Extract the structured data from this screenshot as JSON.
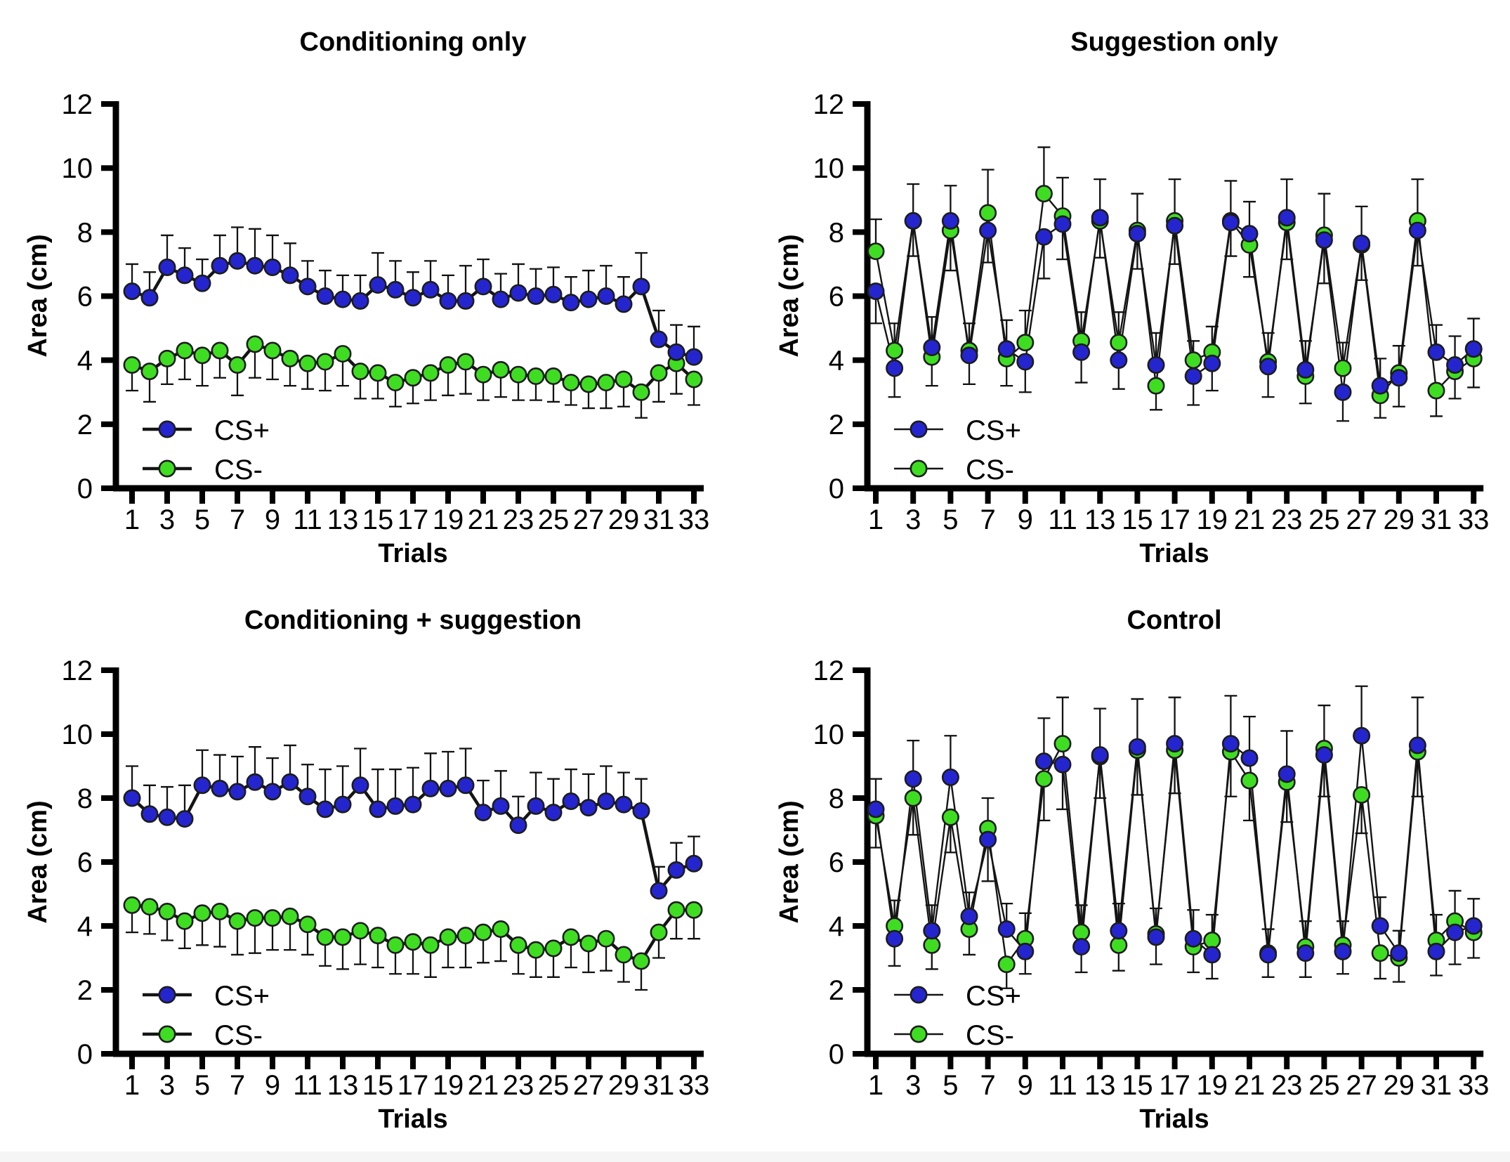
{
  "page": {
    "background": "#ffffff",
    "footer_strip_color": "#f5f5f5"
  },
  "colors": {
    "cs_plus": "#2525d0",
    "cs_minus": "#3fdd22",
    "line": "#141414",
    "axis": "#000000",
    "error_bar": "#111111"
  },
  "legend": {
    "cs_plus_label": "CS+",
    "cs_minus_label": "CS-"
  },
  "axes": {
    "ylabel": "Area (cm)",
    "xlabel": "Trials",
    "ylim": [
      0,
      12
    ],
    "yticks": [
      0,
      2,
      4,
      6,
      8,
      10,
      12
    ],
    "xticks": [
      1,
      3,
      5,
      7,
      9,
      11,
      13,
      15,
      17,
      19,
      21,
      23,
      25,
      27,
      29,
      31,
      33
    ],
    "x_range": [
      1,
      33
    ],
    "grid": "off",
    "legend_position": "lower-left-inside"
  },
  "chart_data": [
    {
      "type": "line",
      "title": "Conditioning only",
      "position": "top-left",
      "error_style": "fixed",
      "series": [
        {
          "name": "CS+",
          "color": "cs_plus",
          "values": [
            6.15,
            5.95,
            6.9,
            6.65,
            6.4,
            6.95,
            7.1,
            6.95,
            6.9,
            6.65,
            6.3,
            6.0,
            5.9,
            5.85,
            6.35,
            6.2,
            5.95,
            6.2,
            5.85,
            5.85,
            6.3,
            5.9,
            6.1,
            6.0,
            6.05,
            5.8,
            5.9,
            6.0,
            5.75,
            6.3,
            4.65,
            4.25,
            4.1
          ],
          "err": [
            0.85,
            0.8,
            1.0,
            0.85,
            0.75,
            0.95,
            1.05,
            1.15,
            1.0,
            1.0,
            0.8,
            0.8,
            0.75,
            0.8,
            1.0,
            0.9,
            0.8,
            0.9,
            0.8,
            1.1,
            0.85,
            0.8,
            0.9,
            0.85,
            0.85,
            0.8,
            0.9,
            0.95,
            0.85,
            1.05,
            0.9,
            0.85,
            0.95
          ]
        },
        {
          "name": "CS-",
          "color": "cs_minus",
          "values": [
            3.85,
            3.65,
            4.05,
            4.3,
            4.15,
            4.3,
            3.85,
            4.5,
            4.3,
            4.05,
            3.9,
            3.95,
            4.2,
            3.65,
            3.6,
            3.3,
            3.45,
            3.6,
            3.85,
            3.95,
            3.55,
            3.7,
            3.55,
            3.5,
            3.5,
            3.3,
            3.25,
            3.3,
            3.4,
            3.0,
            3.6,
            3.9,
            3.4
          ],
          "err": [
            0.8,
            0.95,
            0.8,
            0.9,
            0.95,
            0.85,
            0.95,
            1.05,
            0.9,
            0.85,
            0.8,
            0.9,
            1.0,
            0.85,
            0.8,
            0.75,
            0.8,
            0.85,
            0.95,
            1.0,
            0.8,
            0.85,
            0.8,
            0.75,
            0.8,
            0.7,
            0.75,
            0.8,
            0.85,
            0.8,
            0.9,
            0.95,
            0.8
          ]
        }
      ]
    },
    {
      "type": "line",
      "title": "Suggestion only",
      "position": "top-right",
      "error_style": "outer",
      "series": [
        {
          "name": "CS+",
          "color": "cs_plus",
          "values": [
            6.15,
            3.75,
            8.35,
            4.4,
            8.35,
            4.15,
            8.05,
            4.35,
            3.95,
            7.85,
            8.25,
            4.25,
            8.45,
            4.0,
            7.95,
            3.85,
            8.2,
            3.5,
            3.9,
            8.3,
            7.95,
            3.8,
            8.45,
            3.7,
            7.75,
            3.0,
            7.65,
            3.2,
            3.45,
            8.05,
            4.25,
            3.85,
            4.35
          ],
          "err": [
            1.0,
            0.9,
            1.15,
            0.95,
            1.1,
            0.9,
            1.0,
            0.9,
            0.95,
            1.3,
            1.1,
            0.95,
            1.2,
            0.9,
            1.1,
            1.0,
            1.2,
            0.9,
            0.85,
            1.05,
            1.0,
            0.95,
            1.2,
            0.9,
            1.35,
            0.9,
            1.15,
            0.85,
            0.9,
            1.1,
            0.85,
            0.9,
            0.95
          ]
        },
        {
          "name": "CS-",
          "color": "cs_minus",
          "values": [
            7.4,
            4.3,
            8.35,
            4.1,
            8.05,
            4.3,
            8.6,
            4.05,
            4.55,
            9.2,
            8.5,
            4.6,
            8.35,
            4.55,
            8.05,
            3.2,
            8.35,
            4.0,
            4.25,
            8.35,
            7.6,
            3.95,
            8.3,
            3.5,
            7.9,
            3.75,
            7.6,
            2.9,
            3.6,
            8.35,
            3.05,
            3.65,
            4.05
          ],
          "err": [
            1.0,
            0.85,
            1.1,
            0.9,
            1.25,
            0.85,
            1.35,
            0.85,
            1.0,
            1.45,
            1.2,
            0.9,
            1.15,
            0.95,
            1.15,
            0.75,
            1.3,
            0.6,
            0.8,
            1.25,
            1.0,
            0.9,
            1.15,
            0.85,
            1.3,
            0.8,
            1.1,
            0.7,
            0.85,
            1.3,
            0.8,
            0.85,
            0.9
          ]
        }
      ]
    },
    {
      "type": "line",
      "title": "Conditioning + suggestion",
      "position": "bottom-left",
      "error_style": "fixed",
      "series": [
        {
          "name": "CS+",
          "color": "cs_plus",
          "values": [
            8.0,
            7.5,
            7.4,
            7.35,
            8.4,
            8.3,
            8.2,
            8.5,
            8.2,
            8.5,
            8.05,
            7.65,
            7.8,
            8.4,
            7.65,
            7.75,
            7.8,
            8.3,
            8.3,
            8.4,
            7.55,
            7.75,
            7.15,
            7.75,
            7.55,
            7.9,
            7.7,
            7.9,
            7.8,
            7.6,
            5.1,
            5.75,
            5.95
          ],
          "err": [
            1.0,
            0.9,
            0.95,
            1.05,
            1.1,
            1.05,
            1.1,
            1.1,
            1.05,
            1.15,
            1.0,
            1.25,
            1.2,
            1.15,
            1.25,
            1.15,
            1.15,
            1.1,
            1.15,
            1.15,
            1.0,
            1.1,
            0.9,
            1.05,
            1.05,
            1.0,
            1.05,
            1.1,
            1.0,
            1.0,
            0.75,
            0.85,
            0.85
          ]
        },
        {
          "name": "CS-",
          "color": "cs_minus",
          "values": [
            4.65,
            4.6,
            4.45,
            4.15,
            4.4,
            4.45,
            4.15,
            4.25,
            4.25,
            4.3,
            4.05,
            3.65,
            3.65,
            3.85,
            3.7,
            3.4,
            3.5,
            3.4,
            3.65,
            3.7,
            3.8,
            3.9,
            3.4,
            3.25,
            3.3,
            3.65,
            3.45,
            3.6,
            3.1,
            2.9,
            3.8,
            4.5,
            4.5
          ],
          "err": [
            0.85,
            0.85,
            0.9,
            0.85,
            1.0,
            1.1,
            1.05,
            1.1,
            1.0,
            1.05,
            0.95,
            0.9,
            1.0,
            1.05,
            1.0,
            0.9,
            1.0,
            1.0,
            0.95,
            1.0,
            0.95,
            1.0,
            0.9,
            0.85,
            0.9,
            0.95,
            0.9,
            1.0,
            0.85,
            0.9,
            0.8,
            0.9,
            0.9
          ]
        }
      ]
    },
    {
      "type": "line",
      "title": "Control",
      "position": "bottom-right",
      "error_style": "outer",
      "series": [
        {
          "name": "CS+",
          "color": "cs_plus",
          "values": [
            7.65,
            3.6,
            8.6,
            3.85,
            8.65,
            4.3,
            6.7,
            3.9,
            3.2,
            9.15,
            9.05,
            3.35,
            9.35,
            3.85,
            9.6,
            3.65,
            9.7,
            3.6,
            3.1,
            9.7,
            9.25,
            3.1,
            8.75,
            3.15,
            9.35,
            3.2,
            9.95,
            4.0,
            3.15,
            9.65,
            3.2,
            3.8,
            4.0
          ],
          "err": [
            0.95,
            0.85,
            1.2,
            0.8,
            1.3,
            0.75,
            1.3,
            0.8,
            0.7,
            1.35,
            1.4,
            0.8,
            1.45,
            0.85,
            1.5,
            0.85,
            1.45,
            0.9,
            0.75,
            1.5,
            1.3,
            0.7,
            1.35,
            0.75,
            1.3,
            0.7,
            1.55,
            0.9,
            0.7,
            1.5,
            0.75,
            1.0,
            0.85
          ]
        },
        {
          "name": "CS-",
          "color": "cs_minus",
          "values": [
            7.45,
            4.0,
            8.0,
            3.4,
            7.4,
            3.9,
            7.05,
            2.8,
            3.6,
            8.6,
            9.7,
            3.8,
            9.3,
            3.4,
            9.5,
            3.75,
            9.5,
            3.35,
            3.55,
            9.45,
            8.55,
            3.15,
            8.5,
            3.35,
            9.55,
            3.4,
            8.1,
            3.15,
            3.0,
            9.45,
            3.55,
            4.15,
            3.8
          ],
          "err": [
            1.0,
            0.8,
            1.15,
            0.75,
            1.1,
            0.8,
            0.95,
            0.75,
            0.8,
            1.3,
            1.45,
            0.85,
            1.3,
            0.8,
            1.4,
            0.8,
            1.35,
            0.8,
            0.8,
            1.4,
            1.25,
            0.75,
            1.25,
            0.8,
            1.35,
            0.75,
            1.2,
            0.8,
            0.75,
            1.4,
            0.8,
            0.95,
            0.8
          ]
        }
      ]
    }
  ]
}
